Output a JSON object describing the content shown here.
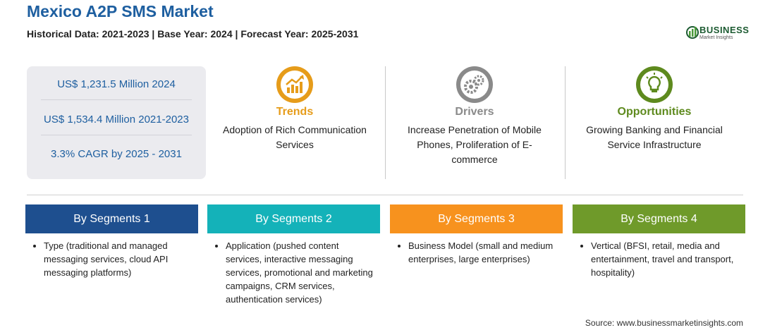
{
  "header": {
    "title": "Mexico A2P SMS Market",
    "subtitle": "Historical Data: 2021-2023 | Base Year: 2024 | Forecast Year: 2025-2031"
  },
  "logo": {
    "name": "BUSINESS",
    "tagline": "Market Insights"
  },
  "stats": [
    "US$ 1,231.5 Million 2024",
    "US$ 1,534.4 Million 2021-2023",
    "3.3% CAGR by 2025 - 2031"
  ],
  "features": [
    {
      "heading": "Trends",
      "text": "Adoption of Rich Communication Services",
      "color": "#e69c1a",
      "icon": "trend-chart-icon"
    },
    {
      "heading": "Drivers",
      "text": "Increase Penetration of Mobile Phones, Proliferation of E-commerce",
      "color": "#8a8a8a",
      "icon": "gears-icon"
    },
    {
      "heading": "Opportunities",
      "text": "Growing Banking and Financial Service Infrastructure",
      "color": "#5e8a1e",
      "icon": "lightbulb-icon"
    }
  ],
  "segments": [
    {
      "title": "By Segments 1",
      "color": "#1e4f8f",
      "item": "Type (traditional and managed messaging services, cloud API messaging platforms)"
    },
    {
      "title": "By Segments 2",
      "color": "#14b2b9",
      "item": "Application (pushed content services, interactive messaging services, promotional and marketing campaigns, CRM services, authentication services)"
    },
    {
      "title": "By Segments 3",
      "color": "#f7921e",
      "item": "Business Model (small and medium enterprises, large enterprises)"
    },
    {
      "title": "By Segments 4",
      "color": "#6f9a2a",
      "item": "Vertical (BFSI, retail, media and entertainment, travel and transport, hospitality)"
    }
  ],
  "source": "Source: www.businessmarketinsights.com"
}
